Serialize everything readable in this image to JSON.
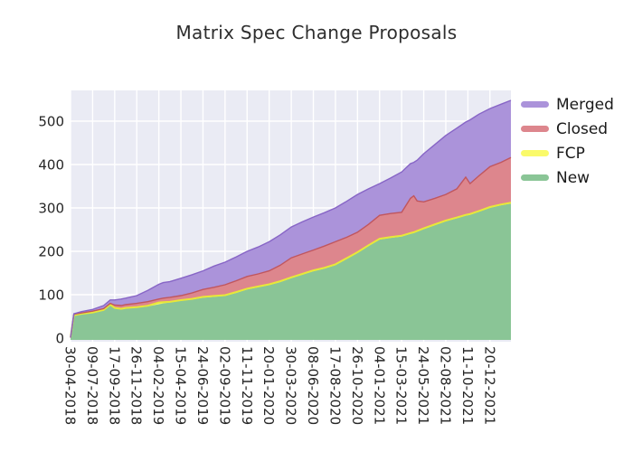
{
  "title": "Matrix Spec Change Proposals",
  "colors": {
    "plot_background": "#eaebf4",
    "gridline": "#ffffff",
    "tick_text": "#262626",
    "title_text": "#2e2e2e",
    "merged_fill": "#ab93da",
    "merged_edge": "#8765c6",
    "closed_fill": "#dd868d",
    "closed_edge": "#c0565e",
    "fcp_fill": "#fafa6a",
    "fcp_edge": "#e8e838",
    "new_fill": "#8ac596",
    "new_edge": "#66b273"
  },
  "chart_data": {
    "type": "area",
    "stacked": true,
    "title": "Matrix Spec Change Proposals",
    "stack_order_bottom_to_top": [
      "New",
      "FCP",
      "Closed",
      "Merged"
    ],
    "legend_position": "upper right, outside plot",
    "grid": "on (white on light lavender background, seaborn style)",
    "xlabel": "",
    "ylabel": "",
    "y_ticks": [
      0,
      100,
      200,
      300,
      400,
      500
    ],
    "ylim": [
      0,
      570
    ],
    "x_tick_labels": [
      "30-04-2018",
      "09-07-2018",
      "17-09-2018",
      "26-11-2018",
      "04-02-2019",
      "15-04-2019",
      "24-06-2019",
      "02-09-2019",
      "11-11-2019",
      "20-01-2020",
      "30-03-2020",
      "08-06-2020",
      "17-08-2020",
      "26-10-2020",
      "04-01-2021",
      "15-03-2021",
      "24-05-2021",
      "02-08-2021",
      "11-10-2021",
      "20-12-2021"
    ],
    "t_units": "fractional x-tick index; ticks are 10-week intervals starting 30-04-2018, data extends to ~late Feb 2022",
    "t": [
      0,
      0.15,
      0.5,
      1,
      1.5,
      1.8,
      2,
      2.3,
      2.5,
      3,
      3.5,
      4,
      4.2,
      4.5,
      5,
      5.5,
      6,
      6.5,
      7,
      7.5,
      8,
      8.5,
      9,
      9.5,
      10,
      10.5,
      11,
      11.5,
      12,
      12.5,
      13,
      13.5,
      14,
      14.5,
      15,
      15.4,
      15.55,
      15.7,
      16,
      16.5,
      17,
      17.5,
      17.9,
      18.1,
      18.5,
      19,
      19.5,
      19.95
    ],
    "series": [
      {
        "name": "New",
        "values": [
          1,
          52,
          55,
          58,
          64,
          76,
          68,
          66,
          68,
          70,
          73,
          78,
          80,
          82,
          86,
          89,
          93,
          95,
          97,
          104,
          112,
          117,
          122,
          129,
          138,
          146,
          154,
          160,
          168,
          182,
          196,
          212,
          227,
          231,
          234,
          240,
          242,
          245,
          251,
          260,
          269,
          276,
          282,
          284,
          291,
          300,
          306,
          310
        ]
      },
      {
        "name": "FCP",
        "values": [
          0,
          1,
          1,
          1,
          1,
          1,
          1.5,
          1.5,
          1.5,
          1.5,
          1.5,
          4,
          3,
          1.5,
          1.5,
          1.5,
          2,
          2,
          2,
          2,
          2,
          2,
          2,
          2,
          2,
          2,
          2,
          2,
          2,
          2,
          2,
          2,
          2,
          2,
          2,
          2,
          2,
          2,
          2,
          2,
          2,
          2,
          2,
          2,
          2,
          2,
          2,
          2
        ]
      },
      {
        "name": "Closed",
        "values": [
          0,
          2,
          2,
          3,
          3,
          3,
          6.5,
          7.5,
          7.5,
          8.5,
          9.5,
          8,
          9,
          10.5,
          10.5,
          13.5,
          17,
          20,
          24,
          26,
          28,
          29,
          31,
          37,
          45,
          46,
          47,
          50,
          52,
          48,
          46,
          48,
          54,
          54,
          54,
          80,
          84,
          69,
          61,
          60,
          60,
          66,
          87,
          70,
          81,
          93,
          97,
          104
        ]
      },
      {
        "name": "Merged",
        "values": [
          0,
          1,
          3,
          4,
          7,
          8,
          12,
          15,
          15,
          18,
          26,
          34,
          36,
          36,
          40,
          42,
          43,
          49,
          52,
          55,
          58,
          62,
          67,
          70,
          71,
          74,
          76,
          77,
          78,
          83,
          87,
          82,
          73,
          82,
          93,
          80,
          77,
          94,
          111,
          124,
          136,
          140,
          127,
          147,
          142,
          134,
          134,
          132
        ]
      }
    ],
    "totals_at_right_edge": {
      "New": 310,
      "FCP_top": 312,
      "Closed_top": 416,
      "Merged_top": 548
    },
    "legend": [
      {
        "label": "Merged",
        "color": "#ab93da"
      },
      {
        "label": "Closed",
        "color": "#dd868d"
      },
      {
        "label": "FCP",
        "color": "#fafa6a"
      },
      {
        "label": "New",
        "color": "#8ac596"
      }
    ]
  }
}
